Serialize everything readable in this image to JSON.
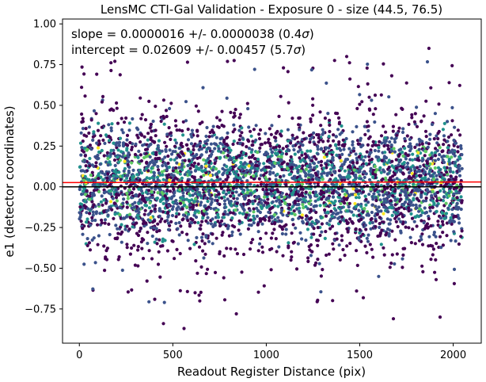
{
  "chart_data": {
    "type": "scatter",
    "title": "LensMC CTI-Gal Validation - Exposure 0 - size (44.5, 76.5)",
    "xlabel": "Readout Register Distance (pix)",
    "ylabel": "e1 (detector coordinates)",
    "xlim": [
      -90,
      2150
    ],
    "ylim": [
      -0.96,
      1.03
    ],
    "xticks": [
      0,
      500,
      1000,
      1500,
      2000
    ],
    "xtick_labels": [
      "0",
      "500",
      "1000",
      "1500",
      "2000"
    ],
    "yticks": [
      -0.75,
      -0.5,
      -0.25,
      0.0,
      0.25,
      0.5,
      0.75,
      1.0
    ],
    "ytick_labels": [
      "−0.75",
      "−0.50",
      "−0.25",
      "0.00",
      "0.25",
      "0.50",
      "0.75",
      "1.00"
    ],
    "grid": false,
    "colormap": "viridis",
    "annotations": [
      {
        "prefix": "slope = 0.0000016 +/- 0.0000038 (0.4",
        "sigma": "σ",
        "suffix": ")"
      },
      {
        "prefix": "intercept = 0.02609 +/- 0.00457 (5.7",
        "sigma": "σ",
        "suffix": ")"
      }
    ],
    "fit_line": {
      "slope": 1.6e-06,
      "intercept": 0.02609,
      "color": "#ff0000"
    },
    "zero_line": {
      "y": 0.0,
      "color": "#000000"
    },
    "scatter": {
      "x_range": [
        0,
        2048
      ],
      "center": 0.026,
      "spread": 0.26,
      "outlier_points": [
        {
          "x": 190,
          "y": 0.77
        },
        {
          "x": 1430,
          "y": 0.8
        },
        {
          "x": 1870,
          "y": 0.85
        },
        {
          "x": 560,
          "y": -0.87
        },
        {
          "x": 450,
          "y": -0.84
        },
        {
          "x": 1930,
          "y": -0.8
        },
        {
          "x": 1680,
          "y": -0.81
        },
        {
          "x": 840,
          "y": -0.78
        }
      ]
    },
    "colors": {
      "dense_low": "#440154",
      "dense_mid": "#3b528b",
      "dense_teal": "#21918c",
      "dense_green": "#5ec962",
      "dense_high": "#fde725"
    }
  }
}
